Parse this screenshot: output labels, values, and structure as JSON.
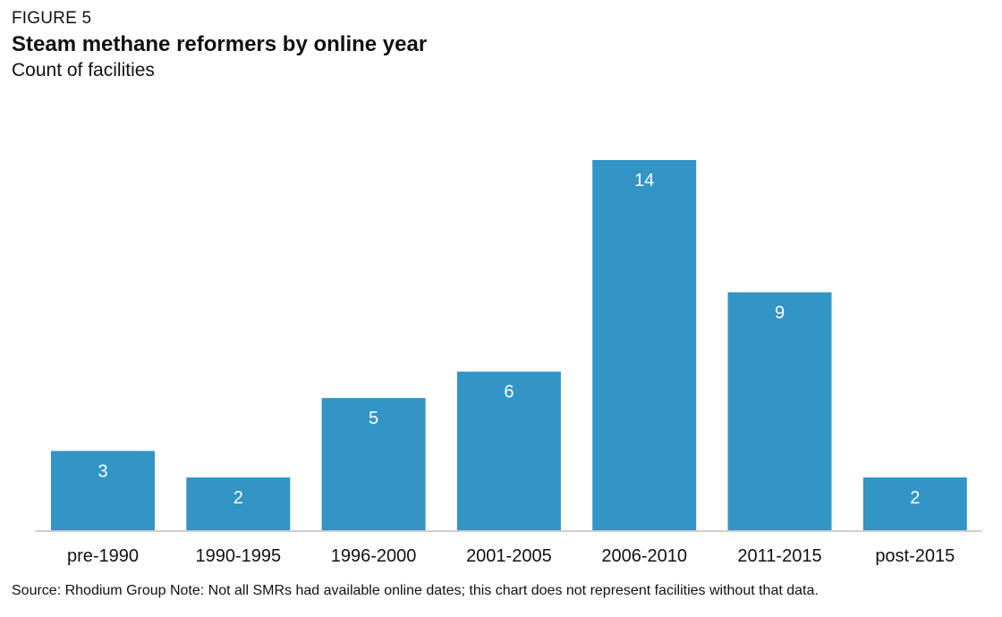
{
  "header": {
    "figure_label": "FIGURE 5",
    "title": "Steam methane reformers by online year",
    "subtitle": "Count of facilities"
  },
  "footer": {
    "source_note": "Source: Rhodium Group Note: Not all SMRs had available online dates; this chart does not represent facilities without that data."
  },
  "colors": {
    "bar": "#3394C6",
    "bar_label": "#ffffff",
    "axis": "#bfbfbf",
    "text": "#111111"
  },
  "chart_data": {
    "type": "bar",
    "title": "Steam methane reformers by online year",
    "subtitle": "Count of facilities",
    "categories": [
      "pre-1990",
      "1990-1995",
      "1996-2000",
      "2001-2005",
      "2006-2010",
      "2011-2015",
      "post-2015"
    ],
    "values": [
      3,
      2,
      5,
      6,
      14,
      9,
      2
    ],
    "data_labels": [
      "3",
      "2",
      "5",
      "6",
      "14",
      "9",
      "2"
    ],
    "xlabel": "",
    "ylabel": "",
    "ylim": [
      0,
      14
    ],
    "grid": false,
    "legend": "none"
  }
}
